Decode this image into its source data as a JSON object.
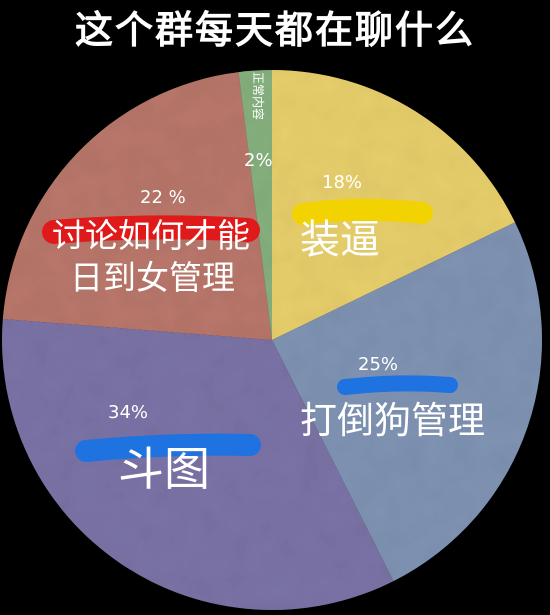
{
  "chart_data": {
    "type": "pie",
    "title": "这个群每天都在聊什么",
    "slices": [
      {
        "label": "装逼",
        "value": 18,
        "value_label": "18%",
        "color": "#e8cf6c",
        "highlight": "#f2d200"
      },
      {
        "label": "打倒狗管理",
        "value": 25,
        "value_label": "25%",
        "color": "#7f93b3",
        "highlight": "#1e73e0"
      },
      {
        "label": "斗图",
        "value": 34,
        "value_label": "34%",
        "color": "#7b73a6",
        "highlight": "#1e73e0"
      },
      {
        "label": "讨论如何才能日到女管理",
        "label_lines": [
          "讨论如何才能",
          "日到女管理"
        ],
        "value": 22,
        "value_label": "22 %",
        "color": "#b9776a",
        "highlight": "#e01a1a"
      },
      {
        "label": "正常内容",
        "value": 2,
        "value_label": "2%",
        "color": "#86b07e"
      }
    ]
  }
}
